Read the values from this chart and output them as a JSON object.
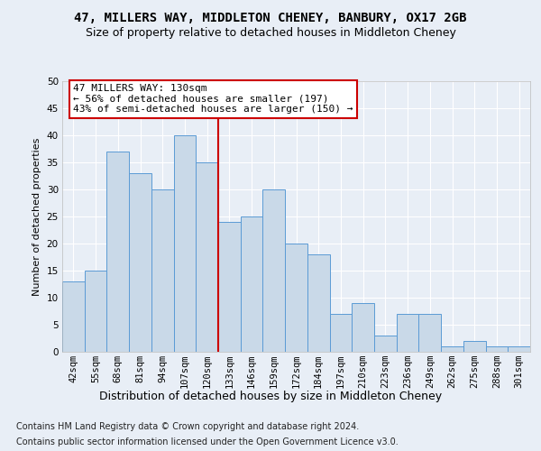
{
  "title1": "47, MILLERS WAY, MIDDLETON CHENEY, BANBURY, OX17 2GB",
  "title2": "Size of property relative to detached houses in Middleton Cheney",
  "xlabel": "Distribution of detached houses by size in Middleton Cheney",
  "ylabel": "Number of detached properties",
  "categories": [
    "42sqm",
    "55sqm",
    "68sqm",
    "81sqm",
    "94sqm",
    "107sqm",
    "120sqm",
    "133sqm",
    "146sqm",
    "159sqm",
    "172sqm",
    "184sqm",
    "197sqm",
    "210sqm",
    "223sqm",
    "236sqm",
    "249sqm",
    "262sqm",
    "275sqm",
    "288sqm",
    "301sqm"
  ],
  "values": [
    13,
    15,
    37,
    33,
    30,
    40,
    35,
    24,
    25,
    30,
    20,
    18,
    7,
    9,
    3,
    7,
    7,
    1,
    2,
    1,
    1
  ],
  "bar_color": "#c9d9e8",
  "bar_edge_color": "#5b9bd5",
  "bg_color": "#e8eef6",
  "plot_bg_color": "#e8eef6",
  "vline_x_idx": 6,
  "vline_color": "#cc0000",
  "annotation_line1": "47 MILLERS WAY: 130sqm",
  "annotation_line2": "← 56% of detached houses are smaller (197)",
  "annotation_line3": "43% of semi-detached houses are larger (150) →",
  "annotation_box_color": "#cc0000",
  "ylim": [
    0,
    50
  ],
  "yticks": [
    0,
    5,
    10,
    15,
    20,
    25,
    30,
    35,
    40,
    45,
    50
  ],
  "footnote1": "Contains HM Land Registry data © Crown copyright and database right 2024.",
  "footnote2": "Contains public sector information licensed under the Open Government Licence v3.0.",
  "title1_fontsize": 10,
  "title2_fontsize": 9,
  "xlabel_fontsize": 9,
  "ylabel_fontsize": 8,
  "tick_fontsize": 7.5,
  "annot_fontsize": 8,
  "footnote_fontsize": 7
}
